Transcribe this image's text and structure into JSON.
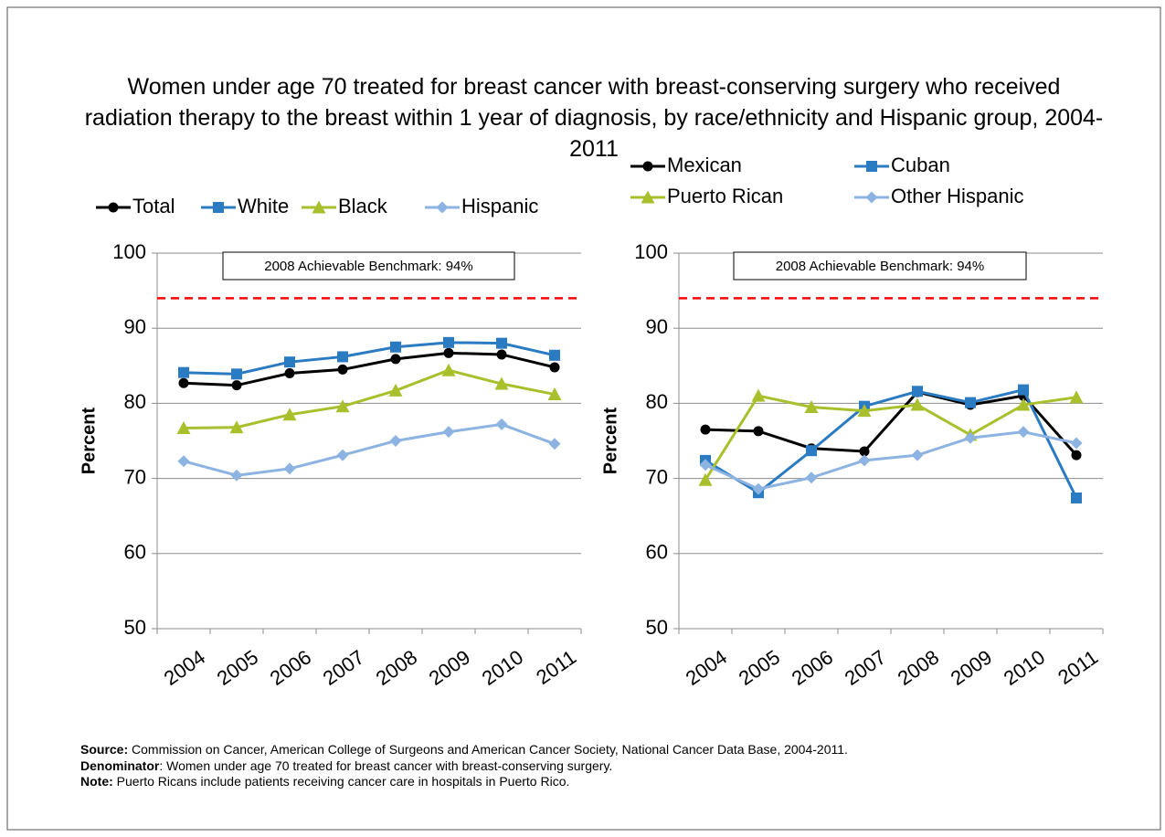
{
  "title": "Women under age 70 treated for breast cancer with breast-conserving surgery who received radiation therapy to the breast within 1 year of diagnosis, by race/ethnicity and Hispanic group, 2004-2011",
  "notes": [
    {
      "label": "Source:",
      "text": " Commission on Cancer, American College of Surgeons and American Cancer Society, National Cancer Data Base, 2004-2011."
    },
    {
      "label": "Denominator",
      "text": ": Women under age 70 treated for breast cancer with breast-conserving surgery."
    },
    {
      "label": "Note:",
      "text": " Puerto Ricans include patients receiving cancer care in hospitals in Puerto Rico."
    }
  ],
  "chart_data": [
    {
      "type": "line",
      "y_label": "Percent",
      "categories": [
        "2004",
        "2005",
        "2006",
        "2007",
        "2008",
        "2009",
        "2010",
        "2011"
      ],
      "ylim": [
        50,
        100
      ],
      "yticks": [
        50,
        60,
        70,
        80,
        90,
        100
      ],
      "grid": true,
      "legend": "top",
      "legend_columns": 4,
      "benchmark": {
        "label": "2008 Achievable Benchmark: 94%",
        "value": 94,
        "color": "#ff0000"
      },
      "series": [
        {
          "name": "Total",
          "color": "#000000",
          "marker": "circle",
          "values": [
            82.7,
            82.4,
            84.0,
            84.5,
            85.9,
            86.7,
            86.5,
            84.8
          ]
        },
        {
          "name": "White",
          "color": "#2a7bc1",
          "marker": "square",
          "values": [
            84.1,
            83.9,
            85.5,
            86.2,
            87.5,
            88.1,
            88.0,
            86.4
          ]
        },
        {
          "name": "Black",
          "color": "#a9bf2c",
          "marker": "triangle",
          "values": [
            76.7,
            76.8,
            78.5,
            79.6,
            81.7,
            84.4,
            82.6,
            81.2
          ]
        },
        {
          "name": "Hispanic",
          "color": "#8db3e2",
          "marker": "diamond",
          "values": [
            72.3,
            70.4,
            71.3,
            73.1,
            75.0,
            76.2,
            77.2,
            74.6
          ]
        }
      ]
    },
    {
      "type": "line",
      "y_label": "Percent",
      "categories": [
        "2004",
        "2005",
        "2006",
        "2007",
        "2008",
        "2009",
        "2010",
        "2011"
      ],
      "ylim": [
        50,
        100
      ],
      "yticks": [
        50,
        60,
        70,
        80,
        90,
        100
      ],
      "grid": true,
      "legend": "top",
      "legend_columns": 2,
      "benchmark": {
        "label": "2008 Achievable Benchmark: 94%",
        "value": 94,
        "color": "#ff0000"
      },
      "series": [
        {
          "name": "Mexican",
          "color": "#000000",
          "marker": "circle",
          "values": [
            76.5,
            76.3,
            74.0,
            73.6,
            81.5,
            79.8,
            81.0,
            73.1
          ]
        },
        {
          "name": "Cuban",
          "color": "#2a7bc1",
          "marker": "square",
          "values": [
            72.4,
            68.1,
            73.7,
            79.6,
            81.6,
            80.1,
            81.8,
            67.4
          ]
        },
        {
          "name": "Puerto Rican",
          "color": "#a9bf2c",
          "marker": "triangle",
          "values": [
            69.8,
            81.0,
            79.5,
            79.0,
            79.8,
            75.8,
            79.8,
            80.8
          ]
        },
        {
          "name": "Other Hispanic",
          "color": "#8db3e2",
          "marker": "diamond",
          "values": [
            71.8,
            68.6,
            70.1,
            72.4,
            73.1,
            75.4,
            76.2,
            74.7
          ]
        }
      ]
    }
  ]
}
